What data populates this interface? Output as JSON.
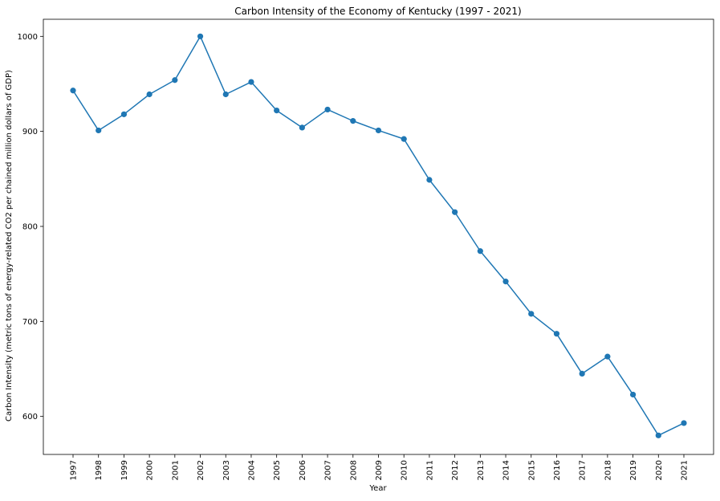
{
  "chart_data": {
    "type": "line",
    "title": "Carbon Intensity of the Economy of Kentucky (1997 - 2021)",
    "xlabel": "Year",
    "ylabel": "Carbon Intensity (metric tons of energy-related CO2 per chained million dollars of GDP)",
    "categories": [
      "1997",
      "1998",
      "1999",
      "2000",
      "2001",
      "2002",
      "2003",
      "2004",
      "2005",
      "2006",
      "2007",
      "2008",
      "2009",
      "2010",
      "2011",
      "2012",
      "2013",
      "2014",
      "2015",
      "2016",
      "2017",
      "2018",
      "2019",
      "2020",
      "2021"
    ],
    "series": [
      {
        "values": [
          943,
          901,
          918,
          939,
          954,
          1000,
          939,
          952,
          922,
          904,
          923,
          911,
          901,
          892,
          849,
          815,
          774,
          742,
          708,
          687,
          645,
          663,
          623,
          580,
          593
        ]
      }
    ],
    "ylim": [
      560,
      1018
    ],
    "yticks": [
      600,
      700,
      800,
      900,
      1000
    ],
    "grid": false,
    "legend": "none",
    "colors": {
      "line": "#1f77b4",
      "marker": "#1f77b4",
      "axis": "#000000"
    }
  }
}
